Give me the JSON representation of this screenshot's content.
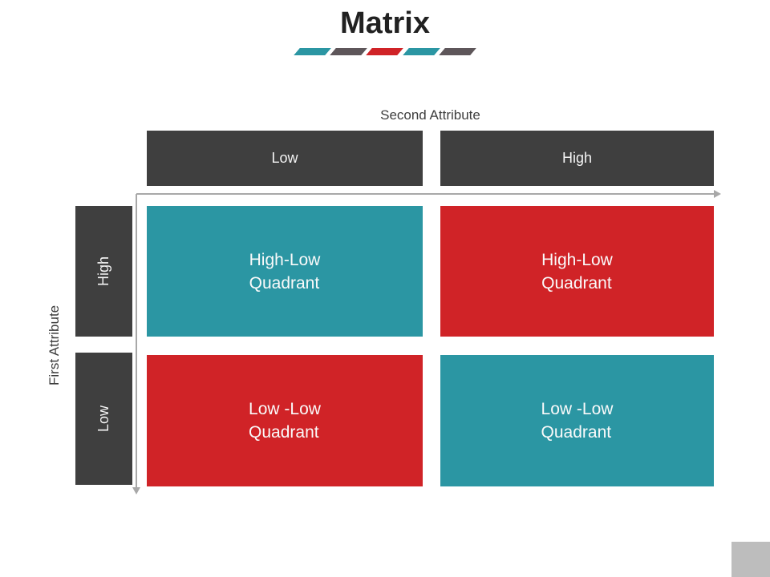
{
  "title": "Matrix",
  "underline": {
    "segments": [
      {
        "name": "segment-1",
        "color": "#2b96a3"
      },
      {
        "name": "segment-2",
        "color": "#5e565a"
      },
      {
        "name": "segment-3",
        "color": "#d02327"
      },
      {
        "name": "segment-4",
        "color": "#2b96a3"
      },
      {
        "name": "segment-5",
        "color": "#5e565a"
      }
    ]
  },
  "matrix": {
    "x_axis": {
      "label": "Second Attribute",
      "categories": [
        {
          "label": "Low"
        },
        {
          "label": "High"
        }
      ]
    },
    "y_axis": {
      "label": "First Attribute",
      "categories": [
        {
          "label": "High"
        },
        {
          "label": "Low"
        }
      ]
    },
    "quadrants": [
      {
        "position": "top-left",
        "label": "High-Low\nQuadrant",
        "color": "#2b96a3"
      },
      {
        "position": "top-right",
        "label": "High-Low\nQuadrant",
        "color": "#d02327"
      },
      {
        "position": "bottom-left",
        "label": "Low -Low\nQuadrant",
        "color": "#d02327"
      },
      {
        "position": "bottom-right",
        "label": "Low -Low\nQuadrant",
        "color": "#2b96a3"
      }
    ]
  },
  "colors": {
    "header_dark": "#3f3f3f",
    "axis_gray": "#a8a8a8",
    "corner_gray": "#bdbdbd",
    "title_text": "#212121",
    "label_text": "#3d3d3d"
  }
}
